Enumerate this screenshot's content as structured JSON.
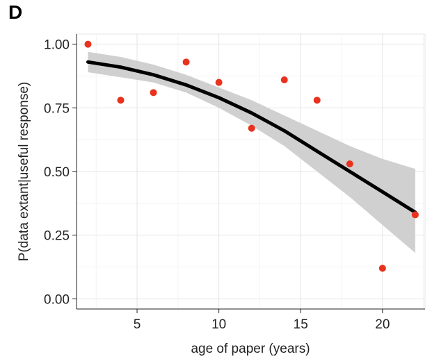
{
  "panel_label": "D",
  "chart_data": {
    "type": "scatter",
    "xlabel": "age of paper (years)",
    "ylabel": "P(data extant|useful response)",
    "xlim": [
      1.3,
      22.6
    ],
    "ylim": [
      -0.04,
      1.04
    ],
    "x_ticks": [
      5,
      10,
      15,
      20
    ],
    "y_ticks": [
      0.0,
      0.25,
      0.5,
      0.75,
      1.0
    ],
    "x_tick_labels": [
      "5",
      "10",
      "15",
      "20"
    ],
    "y_tick_labels": [
      "0.00",
      "0.25",
      "0.50",
      "0.75",
      "1.00"
    ],
    "grid": true,
    "points": {
      "color": "#e8321e",
      "x": [
        2,
        4,
        6,
        8,
        10,
        12,
        14,
        16,
        18,
        20,
        22
      ],
      "y": [
        1.0,
        0.78,
        0.81,
        0.93,
        0.85,
        0.67,
        0.86,
        0.78,
        0.53,
        0.12,
        0.33
      ]
    },
    "fit": {
      "color": "#000000",
      "x": [
        2,
        4,
        6,
        8,
        10,
        12,
        14,
        16,
        18,
        20,
        22
      ],
      "y": [
        0.93,
        0.91,
        0.88,
        0.84,
        0.79,
        0.73,
        0.66,
        0.58,
        0.5,
        0.42,
        0.34
      ],
      "lower": [
        0.89,
        0.87,
        0.85,
        0.81,
        0.75,
        0.68,
        0.6,
        0.5,
        0.4,
        0.29,
        0.18
      ],
      "upper": [
        0.97,
        0.95,
        0.92,
        0.88,
        0.83,
        0.78,
        0.72,
        0.66,
        0.6,
        0.55,
        0.51
      ],
      "band_color": "#d0d0d0"
    }
  }
}
